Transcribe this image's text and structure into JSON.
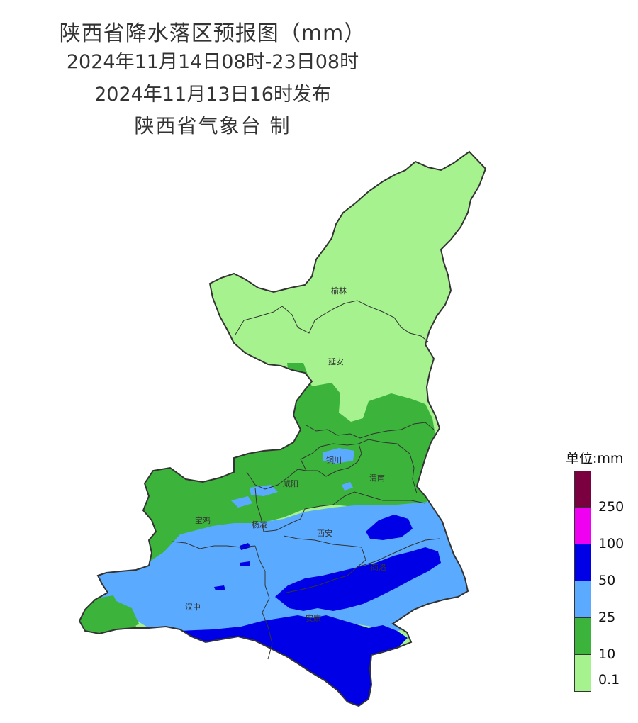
{
  "title": {
    "line1": "陕西省降水落区预报图（mm）",
    "line2": "2024年11月14日08时-23日08时",
    "line3": "2024年11月13日16时发布",
    "line4": "陕西省气象台 制"
  },
  "cities": [
    {
      "name": "榆林"
    },
    {
      "name": "延安"
    },
    {
      "name": "铜川"
    },
    {
      "name": "咸阳"
    },
    {
      "name": "渭南"
    },
    {
      "name": "宝鸡"
    },
    {
      "name": "杨凌"
    },
    {
      "name": "西安"
    },
    {
      "name": "商洛"
    },
    {
      "name": "汉中"
    },
    {
      "name": "安康"
    }
  ],
  "legend": {
    "title": "单位:mm",
    "levels": [
      {
        "color": "#7a0040",
        "label": ""
      },
      {
        "color": "#f000f0",
        "label": "250"
      },
      {
        "color": "#0000e6",
        "label": "100"
      },
      {
        "color": "#5aabff",
        "label": "50"
      },
      {
        "color": "#3cb43c",
        "label": "25"
      },
      {
        "color": "#a6f28f",
        "label": "10"
      }
    ],
    "bottom_label": "0.1"
  },
  "colors": {
    "light_green": "#a6f28f",
    "green": "#3cb43c",
    "light_blue": "#5aabff",
    "blue": "#0000e6",
    "boundary": "#333333"
  }
}
